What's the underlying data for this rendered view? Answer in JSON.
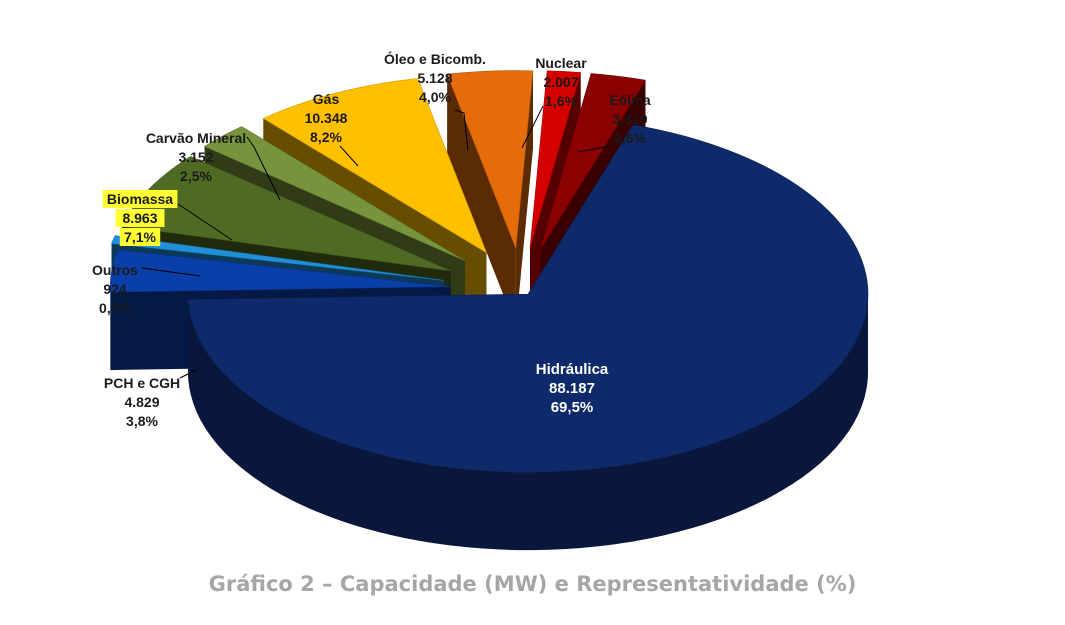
{
  "chart_data": {
    "type": "pie",
    "style": "3d-exploded",
    "title": "Gráfico 2 – Capacidade (MW) e Representatividade (%)",
    "slices": [
      {
        "name": "Hidráulica",
        "value": 88187,
        "value_label": "88.187",
        "percent": "69,5%",
        "color": "#0e2a6b"
      },
      {
        "name": "PCH e CGH",
        "value": 4829,
        "value_label": "4.829",
        "percent": "3,8%",
        "color": "#0a3fa8"
      },
      {
        "name": "Outros",
        "value": 924,
        "value_label": "924",
        "percent": "0,7%",
        "color": "#1f8fd6"
      },
      {
        "name": "Biomassa",
        "value": 8963,
        "value_label": "8.963",
        "percent": "7,1%",
        "color": "#4f6b23",
        "highlight": "#ffff33"
      },
      {
        "name": "Carvão Mineral",
        "value": 3152,
        "value_label": "3.152",
        "percent": "2,5%",
        "color": "#77943c"
      },
      {
        "name": "Gás",
        "value": 10348,
        "value_label": "10.348",
        "percent": "8,2%",
        "color": "#ffc000"
      },
      {
        "name": "Óleo e Bicomb.",
        "value": 5128,
        "value_label": "5.128",
        "percent": "4,0%",
        "color": "#e46c0a"
      },
      {
        "name": "Nuclear",
        "value": 2007,
        "value_label": "2.007",
        "percent": "1,6%",
        "color": "#d40000"
      },
      {
        "name": "Eólica",
        "value": 3319,
        "value_label": "3.319",
        "percent": "2,6%",
        "color": "#8b0000"
      }
    ]
  }
}
